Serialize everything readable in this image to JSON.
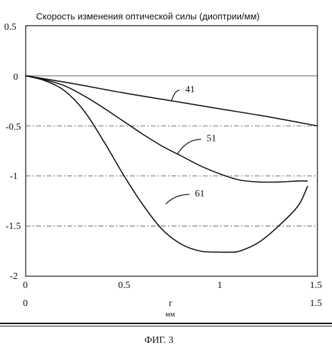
{
  "chart_data": {
    "type": "line",
    "title": "Скорость изменения оптической силы (диоптрии/мм)",
    "xlabel": "r",
    "xunit": "мм",
    "caption": "ФИГ. 3",
    "xlim": [
      0,
      1.5
    ],
    "ylim": [
      -2,
      0.5
    ],
    "x_ticks": [
      "0",
      "0.5",
      "1",
      "1.5"
    ],
    "x_ticks_lower": [
      "0",
      "1.5"
    ],
    "y_ticks": [
      "0.5",
      "0",
      "-0.5",
      "-1",
      "-1.5",
      "-2"
    ],
    "grid": true,
    "series": [
      {
        "name": "41",
        "x": [
          0,
          0.25,
          0.5,
          0.75,
          1.0,
          1.25,
          1.5
        ],
        "y": [
          0,
          -0.08,
          -0.17,
          -0.25,
          -0.33,
          -0.41,
          -0.5
        ]
      },
      {
        "name": "51",
        "x": [
          0,
          0.1,
          0.2,
          0.3,
          0.4,
          0.5,
          0.6,
          0.7,
          0.8,
          0.9,
          1.0,
          1.1,
          1.2,
          1.3,
          1.4,
          1.45
        ],
        "y": [
          0,
          -0.04,
          -0.1,
          -0.2,
          -0.32,
          -0.45,
          -0.58,
          -0.7,
          -0.8,
          -0.9,
          -0.98,
          -1.04,
          -1.06,
          -1.06,
          -1.05,
          -1.05
        ]
      },
      {
        "name": "61",
        "x": [
          0,
          0.1,
          0.2,
          0.3,
          0.4,
          0.5,
          0.6,
          0.7,
          0.8,
          0.9,
          1.0,
          1.05,
          1.1,
          1.2,
          1.3,
          1.4,
          1.45
        ],
        "y": [
          0,
          -0.05,
          -0.15,
          -0.35,
          -0.65,
          -0.98,
          -1.28,
          -1.53,
          -1.68,
          -1.75,
          -1.76,
          -1.76,
          -1.75,
          -1.66,
          -1.5,
          -1.3,
          -1.1
        ]
      }
    ],
    "annotations": [
      {
        "label": "41",
        "x": 0.82,
        "y": -0.13,
        "ax": 0.75,
        "ay": -0.25
      },
      {
        "label": "51",
        "x": 0.93,
        "y": -0.62,
        "ax": 0.78,
        "ay": -0.78
      },
      {
        "label": "61",
        "x": 0.87,
        "y": -1.17,
        "ax": 0.72,
        "ay": -1.28
      }
    ]
  }
}
